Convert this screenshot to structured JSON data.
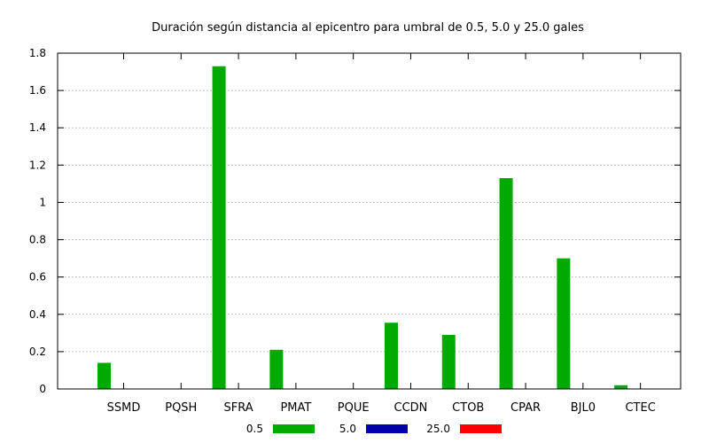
{
  "chart_data": {
    "type": "bar",
    "title": "Duración según distancia al epicentro para umbral de 0.5, 5.0 y 25.0 gales",
    "xlabel": "",
    "ylabel": "",
    "categories": [
      "SSMD",
      "PQSH",
      "SFRA",
      "PMAT",
      "PQUE",
      "CCDN",
      "CTOB",
      "CPAR",
      "BJL0",
      "CTEC"
    ],
    "series": [
      {
        "name": "0.5",
        "color": "#00aa00",
        "values": [
          0.14,
          0,
          1.73,
          0.21,
          0,
          0.355,
          0.29,
          1.13,
          0.7,
          0.02
        ]
      },
      {
        "name": "5.0",
        "color": "#0000aa",
        "values": [
          0,
          0,
          0,
          0,
          0,
          0,
          0,
          0,
          0,
          0
        ]
      },
      {
        "name": "25.0",
        "color": "#ff0000",
        "values": [
          0,
          0,
          0,
          0,
          0,
          0,
          0,
          0,
          0,
          0
        ]
      }
    ],
    "ylim": [
      0,
      1.8
    ],
    "yticks": [
      "0",
      "0.2",
      "0.4",
      "0.6",
      "0.8",
      "1",
      "1.2",
      "1.4",
      "1.6",
      "1.8"
    ],
    "grid": true,
    "legend_position": "bottom"
  }
}
